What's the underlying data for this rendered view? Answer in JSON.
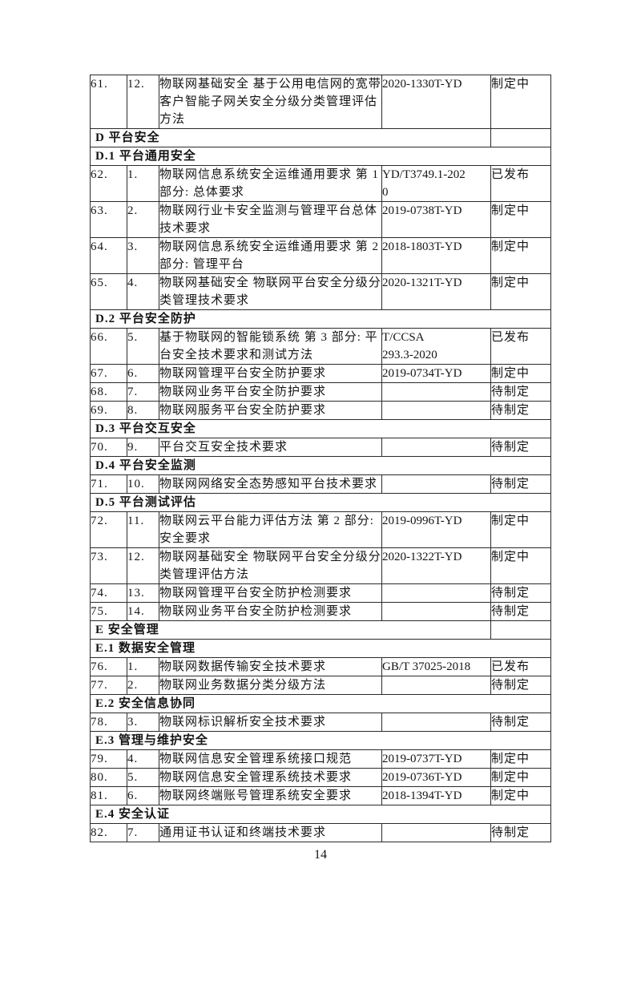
{
  "page_number": "14",
  "table": {
    "rows": [
      {
        "type": "item",
        "num": "61.",
        "sub": "12.",
        "title": "物联网基础安全 基于公用电信网的宽带客户智能子网关安全分级分类管理评估方法",
        "std": "2020-1330T-YD",
        "status": "制定中"
      },
      {
        "type": "section",
        "label": "D 平台安全"
      },
      {
        "type": "subsection",
        "label": "D.1 平台通用安全"
      },
      {
        "type": "item",
        "num": "62.",
        "sub": "1.",
        "title": "物联网信息系统安全运维通用要求 第 1 部分: 总体要求",
        "std": "YD/T3749.1-202\n0",
        "status": "已发布"
      },
      {
        "type": "item",
        "num": "63.",
        "sub": "2.",
        "title": "物联网行业卡安全监测与管理平台总体技术要求",
        "std": "2019-0738T-YD",
        "status": "制定中"
      },
      {
        "type": "item",
        "num": "64.",
        "sub": "3.",
        "title": "物联网信息系统安全运维通用要求 第 2 部分: 管理平台",
        "std": "2018-1803T-YD",
        "status": "制定中"
      },
      {
        "type": "item",
        "num": "65.",
        "sub": "4.",
        "title": "物联网基础安全 物联网平台安全分级分类管理技术要求",
        "std": "2020-1321T-YD",
        "status": "制定中"
      },
      {
        "type": "subsection",
        "label": "D.2 平台安全防护"
      },
      {
        "type": "item",
        "num": "66.",
        "sub": "5.",
        "title": "基于物联网的智能锁系统 第 3 部分: 平台安全技术要求和测试方法",
        "std": "T/CCSA\n293.3-2020",
        "status": "已发布"
      },
      {
        "type": "item",
        "num": "67.",
        "sub": "6.",
        "title": "物联网管理平台安全防护要求",
        "std": "2019-0734T-YD",
        "status": "制定中"
      },
      {
        "type": "item",
        "num": "68.",
        "sub": "7.",
        "title": "物联网业务平台安全防护要求",
        "std": "",
        "status": "待制定"
      },
      {
        "type": "item",
        "num": "69.",
        "sub": "8.",
        "title": "物联网服务平台安全防护要求",
        "std": "",
        "status": "待制定"
      },
      {
        "type": "subsection",
        "label": "D.3 平台交互安全"
      },
      {
        "type": "item",
        "num": "70.",
        "sub": "9.",
        "title": "平台交互安全技术要求",
        "std": "",
        "status": "待制定"
      },
      {
        "type": "subsection",
        "label": "D.4 平台安全监测"
      },
      {
        "type": "item",
        "num": "71.",
        "sub": "10.",
        "title": "物联网网络安全态势感知平台技术要求",
        "std": "",
        "status": "待制定"
      },
      {
        "type": "subsection",
        "label": "D.5 平台测试评估"
      },
      {
        "type": "item",
        "num": "72.",
        "sub": "11.",
        "title": "物联网云平台能力评估方法 第 2 部分: 安全要求",
        "std": "2019-0996T-YD",
        "status": "制定中"
      },
      {
        "type": "item",
        "num": "73.",
        "sub": "12.",
        "title": "物联网基础安全 物联网平台安全分级分类管理评估方法",
        "std": "2020-1322T-YD",
        "status": "制定中"
      },
      {
        "type": "item",
        "num": "74.",
        "sub": "13.",
        "title": "物联网管理平台安全防护检测要求",
        "std": "",
        "status": "待制定"
      },
      {
        "type": "item",
        "num": "75.",
        "sub": "14.",
        "title": "物联网业务平台安全防护检测要求",
        "std": "",
        "status": "待制定"
      },
      {
        "type": "section",
        "label": "E 安全管理"
      },
      {
        "type": "subsection",
        "label": "E.1 数据安全管理"
      },
      {
        "type": "item",
        "num": "76.",
        "sub": "1.",
        "title": "物联网数据传输安全技术要求",
        "std": "GB/T 37025-2018",
        "status": "已发布"
      },
      {
        "type": "item",
        "num": "77.",
        "sub": "2.",
        "title": "物联网业务数据分类分级方法",
        "std": "",
        "status": "待制定"
      },
      {
        "type": "subsection",
        "label": "E.2 安全信息协同"
      },
      {
        "type": "item",
        "num": "78.",
        "sub": "3.",
        "title": "物联网标识解析安全技术要求",
        "std": "",
        "status": "待制定"
      },
      {
        "type": "subsection",
        "label": "E.3 管理与维护安全"
      },
      {
        "type": "item",
        "num": "79.",
        "sub": "4.",
        "title": "物联网信息安全管理系统接口规范",
        "std": "2019-0737T-YD",
        "status": "制定中"
      },
      {
        "type": "item",
        "num": "80.",
        "sub": "5.",
        "title": "物联网信息安全管理系统技术要求",
        "std": "2019-0736T-YD",
        "status": "制定中"
      },
      {
        "type": "item",
        "num": "81.",
        "sub": "6.",
        "title": "物联网终端账号管理系统安全要求",
        "std": "2018-1394T-YD",
        "status": "制定中"
      },
      {
        "type": "subsection",
        "label": "E.4 安全认证"
      },
      {
        "type": "item",
        "num": "82.",
        "sub": "7.",
        "title": "通用证书认证和终端技术要求",
        "std": "",
        "status": "待制定"
      }
    ]
  }
}
